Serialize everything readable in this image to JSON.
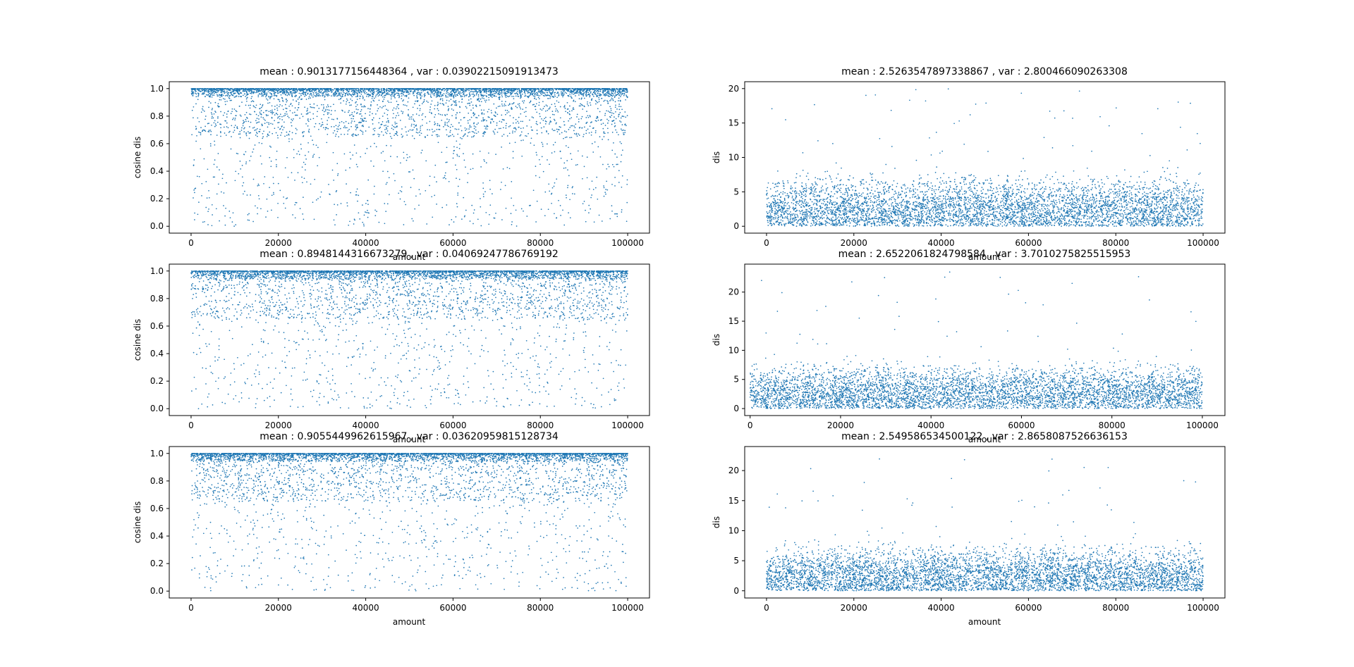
{
  "figure": {
    "background": "#ffffff",
    "marker_color": "#1f77b4"
  },
  "chart_data": [
    {
      "type": "scatter",
      "position": "row1-left",
      "title": "mean : 0.9013177156448364 , var : 0.03902215091913473",
      "xlabel": "amount",
      "ylabel": "cosine dis",
      "xlim": [
        -5000,
        105000
      ],
      "ylim": [
        -0.05,
        1.05
      ],
      "xticks": [
        0,
        20000,
        40000,
        60000,
        80000,
        100000
      ],
      "xtick_labels": [
        "0",
        "20000",
        "40000",
        "60000",
        "80000",
        "100000"
      ],
      "yticks": [
        0.0,
        0.2,
        0.4,
        0.6,
        0.8,
        1.0
      ],
      "ytick_labels": [
        "0.0",
        "0.2",
        "0.4",
        "0.6",
        "0.8",
        "1.0"
      ],
      "n_points": 100000,
      "x_range": [
        0,
        100000
      ],
      "y_mean": 0.9013177156448364,
      "y_var": 0.03902215091913473,
      "y_min": 0.0,
      "y_max": 1.0,
      "distribution": "dense band near 1.0, sparse scatter down to 0.0",
      "marker_color": "#1f77b4",
      "grid": false
    },
    {
      "type": "scatter",
      "position": "row1-right",
      "title": "mean : 2.5263547897338867 , var : 2.800466090263308",
      "xlabel": "amount",
      "ylabel": "dis",
      "xlim": [
        -5000,
        105000
      ],
      "ylim": [
        -1,
        21
      ],
      "xticks": [
        0,
        20000,
        40000,
        60000,
        80000,
        100000
      ],
      "xtick_labels": [
        "0",
        "20000",
        "40000",
        "60000",
        "80000",
        "100000"
      ],
      "yticks": [
        0,
        5,
        10,
        15,
        20
      ],
      "ytick_labels": [
        "0",
        "5",
        "10",
        "15",
        "20"
      ],
      "n_points": 100000,
      "x_range": [
        0,
        100000
      ],
      "y_mean": 2.5263547897338867,
      "y_var": 2.800466090263308,
      "y_min": 0.0,
      "y_max": 20.0,
      "distribution": "dense band from 0 to about 6, sparse outliers up to about 20",
      "marker_color": "#1f77b4",
      "grid": false
    },
    {
      "type": "scatter",
      "position": "row2-left",
      "title": "mean : 0.8948144316673279 , var : 0.04069247786769192",
      "xlabel": "amount",
      "ylabel": "cosine dis",
      "xlim": [
        -5000,
        105000
      ],
      "ylim": [
        -0.05,
        1.05
      ],
      "xticks": [
        0,
        20000,
        40000,
        60000,
        80000,
        100000
      ],
      "xtick_labels": [
        "0",
        "20000",
        "40000",
        "60000",
        "80000",
        "100000"
      ],
      "yticks": [
        0.0,
        0.2,
        0.4,
        0.6,
        0.8,
        1.0
      ],
      "ytick_labels": [
        "0.0",
        "0.2",
        "0.4",
        "0.6",
        "0.8",
        "1.0"
      ],
      "n_points": 100000,
      "x_range": [
        0,
        100000
      ],
      "y_mean": 0.8948144316673279,
      "y_var": 0.04069247786769192,
      "y_min": 0.0,
      "y_max": 1.0,
      "distribution": "dense band near 1.0, sparse scatter down to 0.0, dense vertical streaks near x=78000, 81000, 99000",
      "marker_color": "#1f77b4",
      "grid": false
    },
    {
      "type": "scatter",
      "position": "row2-right",
      "title": "mean : 2.6522061824798584 , var : 3.7010275825515953",
      "xlabel": "amount",
      "ylabel": "dis",
      "xlim": [
        -1200,
        105000
      ],
      "ylim": [
        -1.2,
        24.8
      ],
      "xticks": [
        0,
        20000,
        40000,
        60000,
        80000,
        100000
      ],
      "xtick_labels": [
        "0",
        "20000",
        "40000",
        "60000",
        "80000",
        "100000"
      ],
      "yticks": [
        0,
        5,
        10,
        15,
        20
      ],
      "ytick_labels": [
        "0",
        "5",
        "10",
        "15",
        "20"
      ],
      "n_points": 100000,
      "x_range": [
        0,
        100000
      ],
      "y_mean": 2.6522061824798584,
      "y_var": 3.7010275825515953,
      "y_min": 0.0,
      "y_max": 23.5,
      "distribution": "dense band from 0 to about 6, sparse outliers up to about 23, spike near x=99000",
      "marker_color": "#1f77b4",
      "grid": false
    },
    {
      "type": "scatter",
      "position": "row3-left",
      "title": "mean : 0.9055449962615967 , var : 0.03620959815128734",
      "xlabel": "amount",
      "ylabel": "cosine dis",
      "xlim": [
        -5000,
        105000
      ],
      "ylim": [
        -0.05,
        1.05
      ],
      "xticks": [
        0,
        20000,
        40000,
        60000,
        80000,
        100000
      ],
      "xtick_labels": [
        "0",
        "20000",
        "40000",
        "60000",
        "80000",
        "100000"
      ],
      "yticks": [
        0.0,
        0.2,
        0.4,
        0.6,
        0.8,
        1.0
      ],
      "ytick_labels": [
        "0.0",
        "0.2",
        "0.4",
        "0.6",
        "0.8",
        "1.0"
      ],
      "n_points": 100000,
      "x_range": [
        0,
        100000
      ],
      "y_mean": 0.9055449962615967,
      "y_var": 0.03620959815128734,
      "y_min": 0.0,
      "y_max": 1.0,
      "distribution": "dense band near 1.0, sparse scatter down to 0.0",
      "marker_color": "#1f77b4",
      "grid": false
    },
    {
      "type": "scatter",
      "position": "row3-right",
      "title": "mean : 2.549586534500122 , var : 2.8658087526636153",
      "xlabel": "amount",
      "ylabel": "dis",
      "xlim": [
        -5000,
        105000
      ],
      "ylim": [
        -1.2,
        24.0
      ],
      "xticks": [
        0,
        20000,
        40000,
        60000,
        80000,
        100000
      ],
      "xtick_labels": [
        "0",
        "20000",
        "40000",
        "60000",
        "80000",
        "100000"
      ],
      "yticks": [
        0,
        5,
        10,
        15,
        20
      ],
      "ytick_labels": [
        "0",
        "5",
        "10",
        "15",
        "20"
      ],
      "n_points": 100000,
      "x_range": [
        0,
        100000
      ],
      "y_mean": 2.549586534500122,
      "y_var": 2.8658087526636153,
      "y_min": 0.0,
      "y_max": 22.5,
      "distribution": "dense band from 0 to about 6, sparse outliers up to about 22",
      "marker_color": "#1f77b4",
      "grid": false
    }
  ]
}
